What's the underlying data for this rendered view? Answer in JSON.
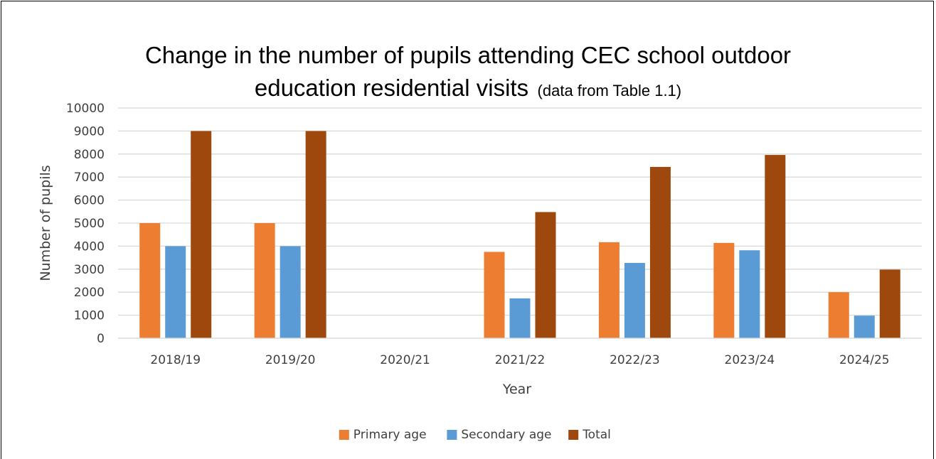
{
  "chart_data": {
    "type": "bar",
    "title": "Change in the number of pupils attending CEC school outdoor education residential visits",
    "title_line1": "Change in the number of pupils attending CEC school outdoor",
    "title_line2_main": "education residential visits",
    "title_line2_note": "(data from Table 1.1)",
    "xlabel": "Year",
    "ylabel": "Number of pupils",
    "ylim": [
      0,
      10000
    ],
    "yticks": [
      0,
      1000,
      2000,
      3000,
      4000,
      5000,
      6000,
      7000,
      8000,
      9000,
      10000
    ],
    "grid": true,
    "legend_position": "bottom",
    "categories": [
      "2018/19",
      "2019/20",
      "2020/21",
      "2021/22",
      "2022/23",
      "2023/24",
      "2024/25"
    ],
    "series": [
      {
        "name": "Primary age",
        "color": "#ED7D31",
        "values": [
          5000,
          5000,
          0,
          3750,
          4170,
          4140,
          2000
        ]
      },
      {
        "name": "Secondary age",
        "color": "#5B9BD5",
        "values": [
          4000,
          4000,
          0,
          1730,
          3270,
          3820,
          980
        ]
      },
      {
        "name": "Total",
        "color": "#9E480E",
        "values": [
          9000,
          9000,
          0,
          5480,
          7440,
          7960,
          2980
        ]
      }
    ]
  }
}
